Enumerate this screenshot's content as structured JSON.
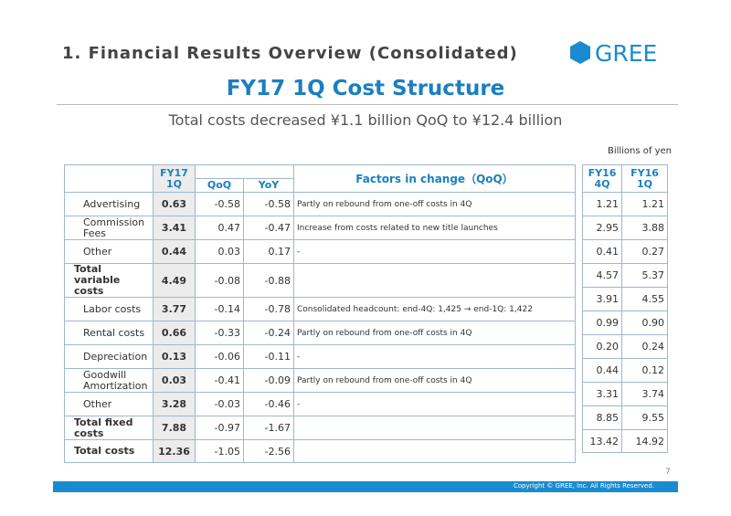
{
  "header": {
    "section_title": "1. Financial Results Overview (Consolidated)",
    "logo": "GREE",
    "title": "FY17 1Q Cost Structure",
    "subtitle": "Total costs decreased ¥1.1 billion QoQ to ¥12.4 billion",
    "unit": "Billions of yen"
  },
  "table": {
    "columns": [
      "FY17 1Q",
      "QoQ",
      "YoY",
      "Factors in change（QoQ）",
      "FY16 4Q",
      "FY16 1Q"
    ],
    "rows": [
      {
        "label": "Advertising",
        "fy17_1q": "0.63",
        "qoq": "-0.58",
        "yoy": "-0.58",
        "factor": "Partly on rebound from one-off costs in 4Q",
        "fy16_4q": "1.21",
        "fy16_1q": "1.21"
      },
      {
        "label": "Commission Fees",
        "fy17_1q": "3.41",
        "qoq": "0.47",
        "yoy": "-0.47",
        "factor": "Increase from costs related to new title launches",
        "fy16_4q": "2.95",
        "fy16_1q": "3.88"
      },
      {
        "label": "Other",
        "fy17_1q": "0.44",
        "qoq": "0.03",
        "yoy": "0.17",
        "factor": "-",
        "fy16_4q": "0.41",
        "fy16_1q": "0.27"
      },
      {
        "label": "Total variable costs",
        "total": true,
        "fy17_1q": "4.49",
        "qoq": "-0.08",
        "yoy": "-0.88",
        "fy16_4q": "4.57",
        "fy16_1q": "5.37"
      },
      {
        "label": "Labor costs",
        "fy17_1q": "3.77",
        "qoq": "-0.14",
        "yoy": "-0.78",
        "factor": "Consolidated headcount: end-4Q: 1,425 → end-1Q: 1,422",
        "fy16_4q": "3.91",
        "fy16_1q": "4.55"
      },
      {
        "label": "Rental costs",
        "fy17_1q": "0.66",
        "qoq": "-0.33",
        "yoy": "-0.24",
        "factor": "Partly on rebound from one-off costs in 4Q",
        "fy16_4q": "0.99",
        "fy16_1q": "0.90"
      },
      {
        "label": "Depreciation",
        "fy17_1q": "0.13",
        "qoq": "-0.06",
        "yoy": "-0.11",
        "factor": "-",
        "fy16_4q": "0.20",
        "fy16_1q": "0.24"
      },
      {
        "label": "Goodwill Amortization",
        "fy17_1q": "0.03",
        "qoq": "-0.41",
        "yoy": "-0.09",
        "factor": "Partly on rebound from one-off costs in 4Q",
        "fy16_4q": "0.44",
        "fy16_1q": "0.12"
      },
      {
        "label": "Other",
        "fy17_1q": "3.28",
        "qoq": "-0.03",
        "yoy": "-0.46",
        "factor": "-",
        "fy16_4q": "3.31",
        "fy16_1q": "3.74"
      },
      {
        "label": "Total fixed costs",
        "total": true,
        "fy17_1q": "7.88",
        "qoq": "-0.97",
        "yoy": "-1.67",
        "fy16_4q": "8.85",
        "fy16_1q": "9.55"
      },
      {
        "label": "Total costs",
        "total": true,
        "fy17_1q": "12.36",
        "qoq": "-1.05",
        "yoy": "-2.56",
        "fy16_4q": "13.42",
        "fy16_1q": "14.92"
      }
    ]
  },
  "footer": {
    "page": "7",
    "copyright": "Copyright © GREE, Inc. All Rights Reserved."
  }
}
